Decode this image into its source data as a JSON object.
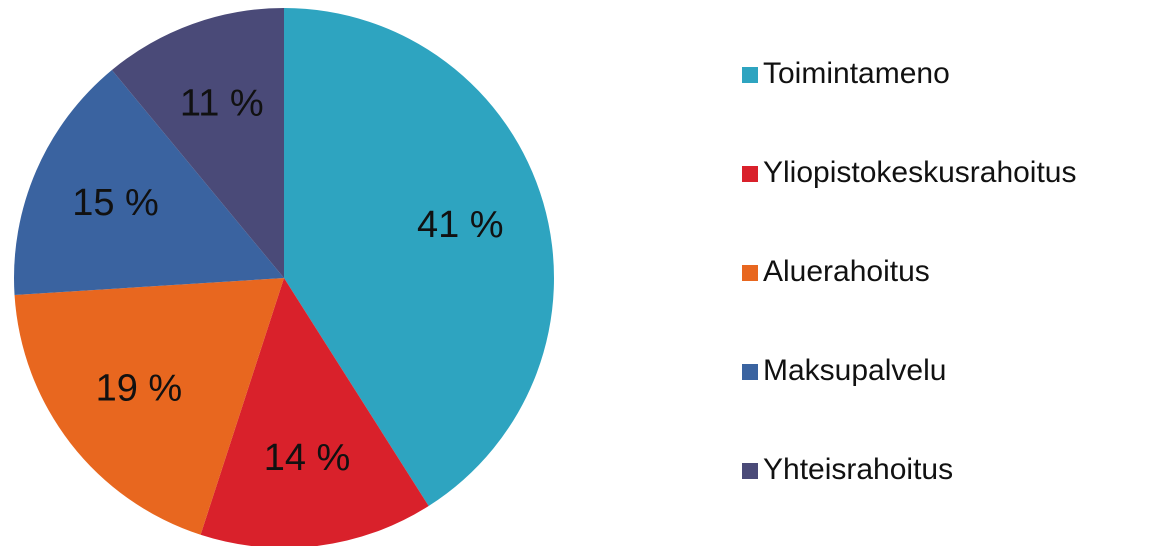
{
  "chart_data": {
    "type": "pie",
    "categories": [
      "Toimintameno",
      "Yliopistokeskusrahoitus",
      "Aluerahoitus",
      "Maksupalvelu",
      "Yhteisrahoitus"
    ],
    "values": [
      41,
      14,
      19,
      15,
      11
    ],
    "value_labels": [
      "41 %",
      "14 %",
      "19 %",
      "15 %",
      "11 %"
    ],
    "colors": [
      "#2ea4c0",
      "#d9212b",
      "#e8671f",
      "#3a63a0",
      "#4a4a78"
    ]
  }
}
